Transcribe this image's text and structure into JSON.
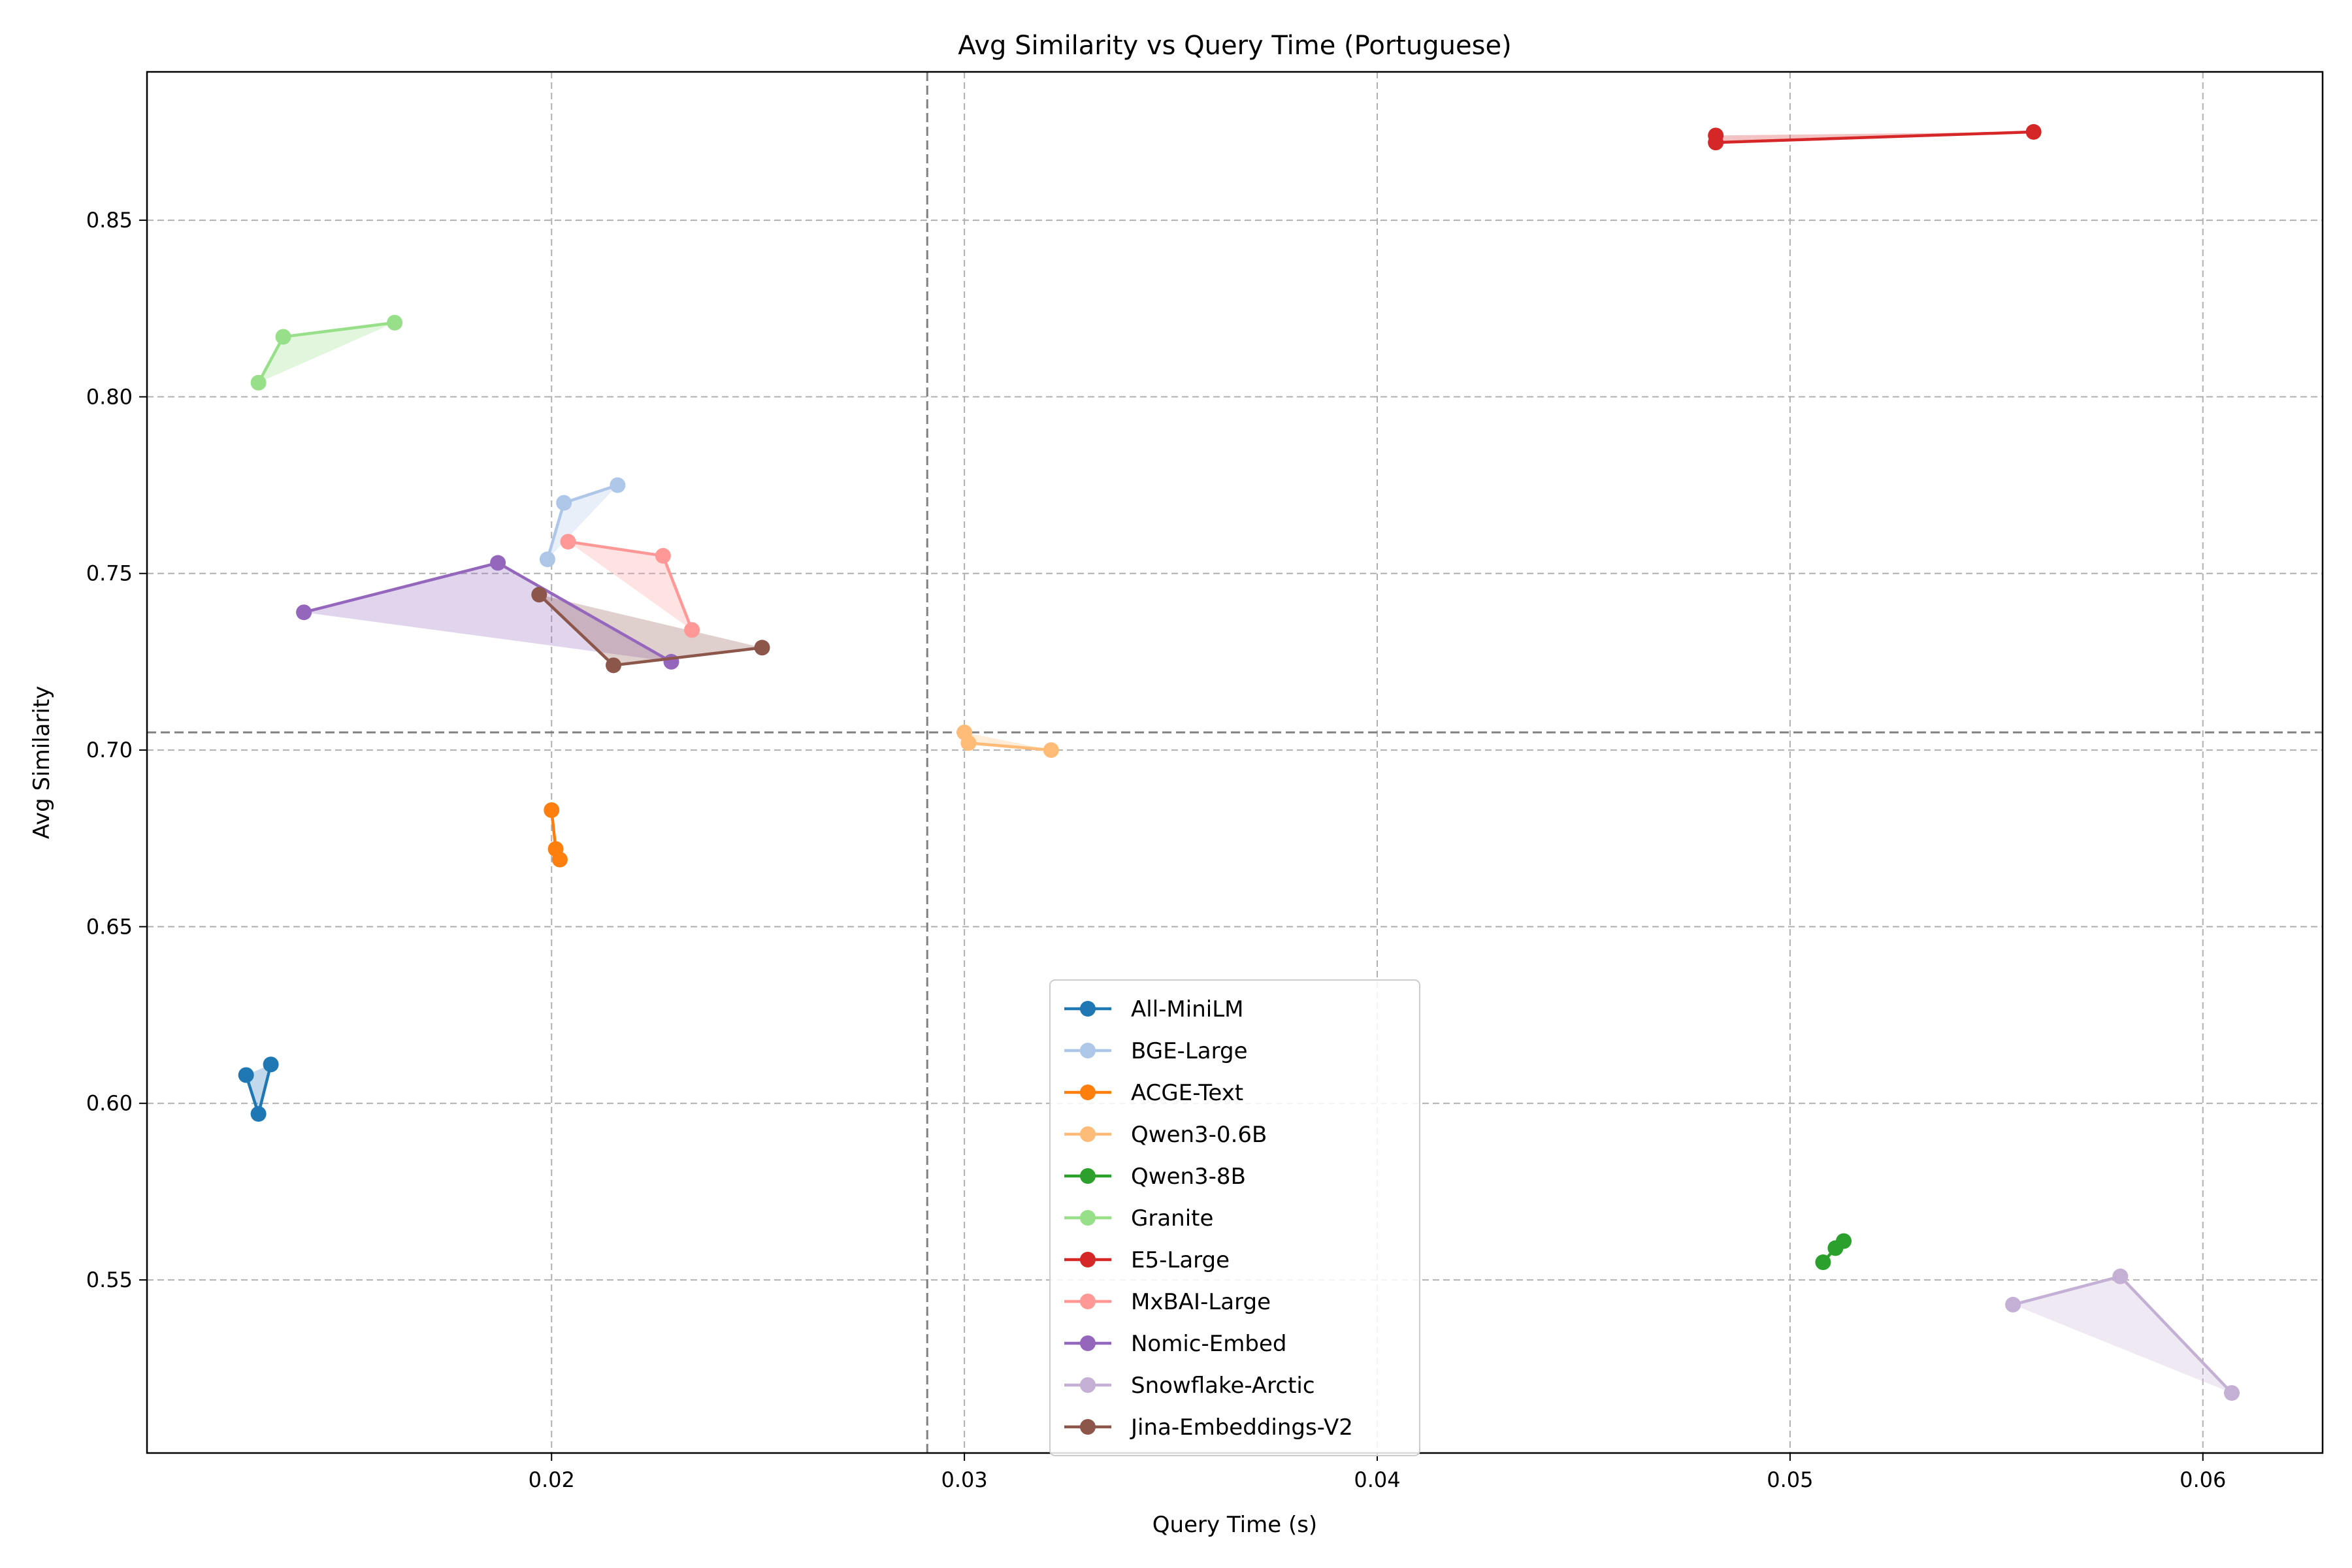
{
  "chart_data": {
    "type": "line",
    "title": "Avg Similarity vs Query Time (Portuguese)",
    "xlabel": "Query Time (s)",
    "ylabel": "Avg Similarity",
    "xlim": [
      0.0102,
      0.0629
    ],
    "ylim": [
      0.501,
      0.892
    ],
    "xticks": [
      0.02,
      0.03,
      0.04,
      0.05,
      0.06
    ],
    "xtick_labels": [
      "0.02",
      "0.03",
      "0.04",
      "0.05",
      "0.06"
    ],
    "yticks": [
      0.55,
      0.6,
      0.65,
      0.7,
      0.75,
      0.8,
      0.85
    ],
    "ytick_labels": [
      "0.55",
      "0.60",
      "0.65",
      "0.70",
      "0.75",
      "0.80",
      "0.85"
    ],
    "grid": true,
    "legend_position": "lower-center",
    "reference_lines": {
      "x": 0.0291,
      "y": 0.705
    },
    "series": [
      {
        "name": "All-MiniLM",
        "color": "#1f77b4",
        "points": [
          [
            0.0126,
            0.608
          ],
          [
            0.0129,
            0.597
          ],
          [
            0.0132,
            0.611
          ]
        ]
      },
      {
        "name": "BGE-Large",
        "color": "#aec7e8",
        "points": [
          [
            0.0199,
            0.754
          ],
          [
            0.0203,
            0.77
          ],
          [
            0.0216,
            0.775
          ]
        ]
      },
      {
        "name": "ACGE-Text",
        "color": "#ff7f0e",
        "points": [
          [
            0.02,
            0.683
          ],
          [
            0.0201,
            0.672
          ],
          [
            0.0202,
            0.669
          ]
        ]
      },
      {
        "name": "Qwen3-0.6B",
        "color": "#ffbb78",
        "points": [
          [
            0.03,
            0.705
          ],
          [
            0.0301,
            0.702
          ],
          [
            0.0321,
            0.7
          ]
        ]
      },
      {
        "name": "Qwen3-8B",
        "color": "#2ca02c",
        "points": [
          [
            0.0508,
            0.555
          ],
          [
            0.0511,
            0.559
          ],
          [
            0.0513,
            0.561
          ]
        ]
      },
      {
        "name": "Granite",
        "color": "#98df8a",
        "points": [
          [
            0.0129,
            0.804
          ],
          [
            0.0135,
            0.817
          ],
          [
            0.0162,
            0.821
          ]
        ]
      },
      {
        "name": "E5-Large",
        "color": "#d62728",
        "points": [
          [
            0.0482,
            0.874
          ],
          [
            0.0482,
            0.872
          ],
          [
            0.0559,
            0.875
          ]
        ]
      },
      {
        "name": "MxBAI-Large",
        "color": "#ff9896",
        "points": [
          [
            0.0204,
            0.759
          ],
          [
            0.0227,
            0.755
          ],
          [
            0.0234,
            0.734
          ]
        ]
      },
      {
        "name": "Nomic-Embed",
        "color": "#9467bd",
        "points": [
          [
            0.014,
            0.739
          ],
          [
            0.0187,
            0.753
          ],
          [
            0.0229,
            0.725
          ]
        ]
      },
      {
        "name": "Snowflake-Arctic",
        "color": "#c5b0d5",
        "points": [
          [
            0.0554,
            0.543
          ],
          [
            0.058,
            0.551
          ],
          [
            0.0607,
            0.518
          ]
        ]
      },
      {
        "name": "Jina-Embeddings-V2",
        "color": "#8c564b",
        "points": [
          [
            0.0197,
            0.744
          ],
          [
            0.0215,
            0.724
          ],
          [
            0.0251,
            0.729
          ]
        ]
      }
    ]
  }
}
